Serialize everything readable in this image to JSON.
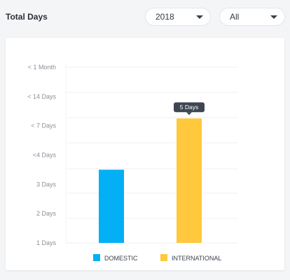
{
  "header": {
    "title": "Total Days",
    "year_select": {
      "value": "2018",
      "icon": "chevron-down-icon"
    },
    "filter_select": {
      "value": "All",
      "icon": "chevron-down-icon"
    }
  },
  "chart_data": {
    "type": "bar",
    "y_categories": [
      "1 Days",
      "2 Days",
      "3 Days",
      "<4 Days",
      "< 7 Days",
      "< 14 Days",
      "< 1 Month"
    ],
    "categories": [
      "DOMESTIC",
      "INTERNATIONAL"
    ],
    "values": [
      3.5,
      5.25
    ],
    "colors": [
      "#03b0f5",
      "#ffc83d"
    ],
    "grid": true,
    "legend": "bottom",
    "tooltip": {
      "series": "INTERNATIONAL",
      "text": "5 Days"
    }
  }
}
